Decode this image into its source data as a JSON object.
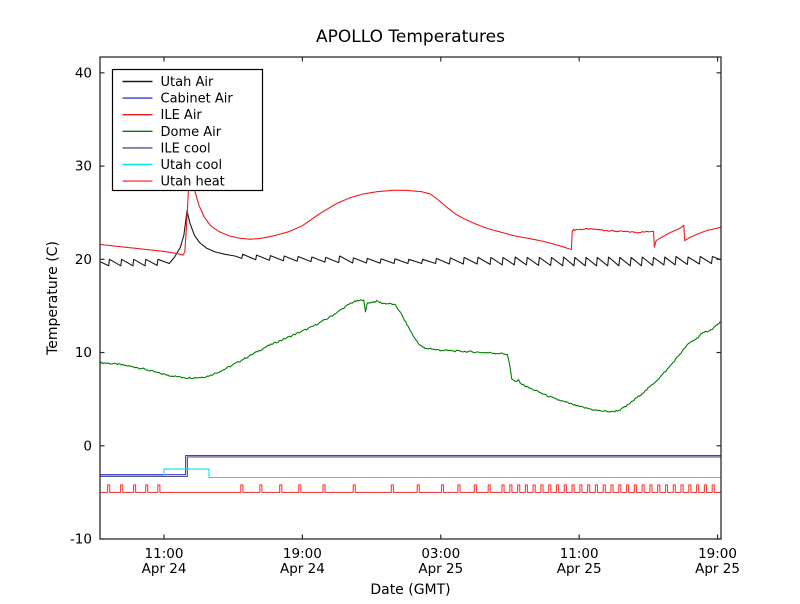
{
  "figure": {
    "background": "#ffffff",
    "border_color": "#2b2b2b"
  },
  "chart_data": {
    "type": "line",
    "title": "APOLLO Temperatures",
    "xlabel": "Date (GMT)",
    "ylabel": "Temperature (C)",
    "x_unit": "hours_since_Apr24_0000_GMT",
    "xlim": [
      7.3,
      43.2
    ],
    "ylim": [
      -10,
      41.7
    ],
    "grid": false,
    "legend_position": "upper left",
    "y_ticks": [
      {
        "value": -10,
        "label": "-10"
      },
      {
        "value": 0,
        "label": "0"
      },
      {
        "value": 10,
        "label": "10"
      },
      {
        "value": 20,
        "label": "20"
      },
      {
        "value": 30,
        "label": "30"
      },
      {
        "value": 40,
        "label": "40"
      }
    ],
    "x_ticks": [
      {
        "hour": 11,
        "time": "11:00",
        "date": "Apr 24"
      },
      {
        "hour": 19,
        "time": "19:00",
        "date": "Apr 24"
      },
      {
        "hour": 27,
        "time": "03:00",
        "date": "Apr 25"
      },
      {
        "hour": 35,
        "time": "11:00",
        "date": "Apr 25"
      },
      {
        "hour": 43,
        "time": "19:00",
        "date": "Apr 25"
      }
    ],
    "series": [
      {
        "name": "Utah Air",
        "color": "#1a1a1a",
        "noise": 0,
        "points": [
          [
            7.3,
            19.75
          ],
          [
            7.8,
            19.3
          ],
          [
            7.85,
            20.0
          ],
          [
            8.5,
            19.3
          ],
          [
            8.55,
            20.0
          ],
          [
            9.2,
            19.3
          ],
          [
            9.25,
            20.0
          ],
          [
            9.9,
            19.3
          ],
          [
            9.95,
            20.0
          ],
          [
            10.6,
            19.35
          ],
          [
            10.65,
            20.0
          ],
          [
            11.3,
            19.55
          ],
          [
            11.6,
            20.2
          ],
          [
            11.95,
            21.3
          ],
          [
            12.15,
            22.6
          ],
          [
            12.33,
            25.2
          ],
          [
            12.5,
            23.9
          ],
          [
            12.75,
            22.6
          ],
          [
            13.05,
            21.8
          ],
          [
            13.45,
            21.2
          ],
          [
            13.95,
            20.8
          ],
          [
            14.5,
            20.55
          ],
          [
            15.1,
            20.35
          ],
          [
            15.5,
            20.1
          ],
          [
            15.55,
            20.55
          ],
          [
            16.3,
            19.95
          ],
          [
            16.35,
            20.45
          ],
          [
            17.1,
            19.9
          ],
          [
            17.15,
            20.4
          ],
          [
            17.9,
            19.85
          ],
          [
            17.95,
            20.35
          ],
          [
            18.7,
            19.8
          ],
          [
            18.75,
            20.3
          ],
          [
            19.5,
            19.75
          ],
          [
            19.55,
            20.25
          ],
          [
            20.3,
            19.7
          ],
          [
            20.35,
            20.2
          ],
          [
            21.1,
            19.65
          ],
          [
            21.15,
            20.35
          ],
          [
            21.9,
            19.6
          ],
          [
            21.95,
            20.15
          ],
          [
            22.7,
            19.6
          ],
          [
            22.75,
            20.1
          ],
          [
            23.5,
            19.58
          ],
          [
            23.55,
            20.05
          ],
          [
            24.3,
            19.55
          ],
          [
            24.35,
            20.05
          ],
          [
            25.1,
            19.55
          ],
          [
            25.15,
            20.0
          ],
          [
            25.9,
            19.55
          ],
          [
            25.95,
            20.0
          ],
          [
            26.7,
            19.55
          ],
          [
            26.75,
            20.1
          ],
          [
            27.5,
            19.5
          ],
          [
            27.55,
            20.15
          ],
          [
            28.3,
            19.5
          ],
          [
            28.35,
            20.2
          ],
          [
            29.1,
            19.5
          ],
          [
            29.15,
            20.2
          ],
          [
            29.85,
            19.45
          ],
          [
            29.9,
            20.2
          ],
          [
            30.55,
            19.4
          ],
          [
            30.6,
            20.2
          ],
          [
            31.25,
            19.4
          ],
          [
            31.3,
            20.25
          ],
          [
            31.95,
            19.4
          ],
          [
            32.0,
            20.2
          ],
          [
            32.65,
            19.35
          ],
          [
            32.7,
            20.2
          ],
          [
            33.35,
            19.35
          ],
          [
            33.4,
            20.2
          ],
          [
            34.05,
            19.3
          ],
          [
            34.1,
            20.25
          ],
          [
            34.7,
            19.3
          ],
          [
            34.75,
            20.2
          ],
          [
            35.35,
            19.3
          ],
          [
            35.4,
            20.2
          ],
          [
            36.0,
            19.3
          ],
          [
            36.05,
            20.2
          ],
          [
            36.65,
            19.3
          ],
          [
            36.7,
            20.25
          ],
          [
            37.3,
            19.3
          ],
          [
            37.35,
            20.2
          ],
          [
            37.95,
            19.3
          ],
          [
            38.0,
            20.2
          ],
          [
            38.6,
            19.3
          ],
          [
            38.65,
            20.25
          ],
          [
            39.25,
            19.35
          ],
          [
            39.3,
            20.2
          ],
          [
            39.9,
            19.4
          ],
          [
            39.95,
            20.25
          ],
          [
            40.55,
            19.4
          ],
          [
            40.6,
            20.3
          ],
          [
            41.25,
            19.45
          ],
          [
            41.3,
            20.25
          ],
          [
            41.95,
            19.5
          ],
          [
            42.0,
            20.3
          ],
          [
            42.65,
            19.55
          ],
          [
            42.7,
            20.3
          ],
          [
            43.2,
            19.95
          ]
        ]
      },
      {
        "name": "Cabinet Air",
        "color": "#3d3dcc",
        "noise": 0,
        "points": [
          [
            7.3,
            -3.1
          ],
          [
            12.25,
            -3.1
          ],
          [
            12.25,
            -1.05
          ],
          [
            43.2,
            -1.05
          ]
        ]
      },
      {
        "name": "ILE Air",
        "color": "#ee1c1c",
        "noise": 0.07,
        "noise_range": [
          34.6,
          39.3
        ],
        "points": [
          [
            7.3,
            21.6
          ],
          [
            8.0,
            21.45
          ],
          [
            9.0,
            21.25
          ],
          [
            10.0,
            21.05
          ],
          [
            11.0,
            20.85
          ],
          [
            11.8,
            20.6
          ],
          [
            12.1,
            20.45
          ],
          [
            12.2,
            20.8
          ],
          [
            12.3,
            23.5
          ],
          [
            12.4,
            27.0
          ],
          [
            12.5,
            28.6
          ],
          [
            12.65,
            28.2
          ],
          [
            12.8,
            27.2
          ],
          [
            13.0,
            25.9
          ],
          [
            13.3,
            24.6
          ],
          [
            13.7,
            23.6
          ],
          [
            14.2,
            22.95
          ],
          [
            14.8,
            22.5
          ],
          [
            15.4,
            22.25
          ],
          [
            16.0,
            22.15
          ],
          [
            16.6,
            22.25
          ],
          [
            17.4,
            22.55
          ],
          [
            18.2,
            22.95
          ],
          [
            19.0,
            23.6
          ],
          [
            20.0,
            24.9
          ],
          [
            21.0,
            26.0
          ],
          [
            21.75,
            26.6
          ],
          [
            22.5,
            27.0
          ],
          [
            23.3,
            27.25
          ],
          [
            24.2,
            27.4
          ],
          [
            25.0,
            27.4
          ],
          [
            25.9,
            27.25
          ],
          [
            26.4,
            27.0
          ],
          [
            26.9,
            26.3
          ],
          [
            27.4,
            25.5
          ],
          [
            27.9,
            24.8
          ],
          [
            28.4,
            24.3
          ],
          [
            29.0,
            23.8
          ],
          [
            29.7,
            23.3
          ],
          [
            30.5,
            22.9
          ],
          [
            31.3,
            22.5
          ],
          [
            32.2,
            22.2
          ],
          [
            33.0,
            21.9
          ],
          [
            33.8,
            21.5
          ],
          [
            34.3,
            21.2
          ],
          [
            34.55,
            21.05
          ],
          [
            34.6,
            23.1
          ],
          [
            34.9,
            23.2
          ],
          [
            35.4,
            23.25
          ],
          [
            36.0,
            23.2
          ],
          [
            36.6,
            23.1
          ],
          [
            37.2,
            23.0
          ],
          [
            37.8,
            22.95
          ],
          [
            38.4,
            22.9
          ],
          [
            38.9,
            22.95
          ],
          [
            39.3,
            23.05
          ],
          [
            39.35,
            21.3
          ],
          [
            39.45,
            22.0
          ],
          [
            39.8,
            22.4
          ],
          [
            40.3,
            22.9
          ],
          [
            40.8,
            23.3
          ],
          [
            41.05,
            23.65
          ],
          [
            41.1,
            22.0
          ],
          [
            41.4,
            22.35
          ],
          [
            41.9,
            22.75
          ],
          [
            42.4,
            23.1
          ],
          [
            42.9,
            23.3
          ],
          [
            43.2,
            23.45
          ]
        ]
      },
      {
        "name": "Dome Air",
        "color": "#007f00",
        "noise": 0.09,
        "points": [
          [
            7.3,
            8.9
          ],
          [
            7.8,
            8.85
          ],
          [
            8.3,
            8.75
          ],
          [
            8.8,
            8.6
          ],
          [
            9.3,
            8.45
          ],
          [
            9.8,
            8.25
          ],
          [
            10.3,
            8.0
          ],
          [
            10.8,
            7.75
          ],
          [
            11.3,
            7.55
          ],
          [
            11.8,
            7.4
          ],
          [
            12.3,
            7.3
          ],
          [
            12.8,
            7.3
          ],
          [
            13.2,
            7.35
          ],
          [
            13.6,
            7.5
          ],
          [
            14.0,
            7.8
          ],
          [
            14.5,
            8.2
          ],
          [
            15.0,
            8.7
          ],
          [
            15.5,
            9.2
          ],
          [
            16.0,
            9.7
          ],
          [
            16.5,
            10.2
          ],
          [
            17.0,
            10.7
          ],
          [
            17.5,
            11.1
          ],
          [
            18.0,
            11.5
          ],
          [
            18.5,
            11.9
          ],
          [
            19.0,
            12.3
          ],
          [
            19.5,
            12.7
          ],
          [
            20.0,
            13.2
          ],
          [
            20.5,
            13.7
          ],
          [
            21.0,
            14.3
          ],
          [
            21.4,
            14.8
          ],
          [
            21.8,
            15.3
          ],
          [
            22.1,
            15.5
          ],
          [
            22.4,
            15.6
          ],
          [
            22.55,
            15.7
          ],
          [
            22.65,
            14.3
          ],
          [
            22.75,
            15.3
          ],
          [
            23.0,
            15.4
          ],
          [
            23.3,
            15.5
          ],
          [
            23.6,
            15.3
          ],
          [
            23.9,
            15.25
          ],
          [
            24.2,
            15.2
          ],
          [
            24.4,
            15.0
          ],
          [
            24.6,
            14.5
          ],
          [
            24.9,
            13.5
          ],
          [
            25.2,
            12.5
          ],
          [
            25.5,
            11.5
          ],
          [
            25.8,
            10.8
          ],
          [
            26.1,
            10.4
          ],
          [
            26.4,
            10.45
          ],
          [
            26.7,
            10.3
          ],
          [
            27.0,
            10.25
          ],
          [
            27.5,
            10.2
          ],
          [
            28.0,
            10.15
          ],
          [
            28.5,
            10.1
          ],
          [
            29.0,
            10.05
          ],
          [
            29.5,
            10.0
          ],
          [
            30.0,
            9.95
          ],
          [
            30.5,
            9.9
          ],
          [
            30.85,
            9.8
          ],
          [
            31.0,
            8.5
          ],
          [
            31.1,
            7.1
          ],
          [
            31.3,
            6.9
          ],
          [
            31.5,
            7.0
          ],
          [
            31.7,
            6.6
          ],
          [
            32.0,
            6.3
          ],
          [
            32.5,
            5.9
          ],
          [
            33.0,
            5.5
          ],
          [
            33.5,
            5.1
          ],
          [
            34.0,
            4.8
          ],
          [
            34.5,
            4.5
          ],
          [
            35.0,
            4.2
          ],
          [
            35.5,
            4.0
          ],
          [
            36.0,
            3.8
          ],
          [
            36.5,
            3.7
          ],
          [
            36.9,
            3.65
          ],
          [
            37.3,
            3.8
          ],
          [
            37.7,
            4.2
          ],
          [
            38.1,
            4.8
          ],
          [
            38.5,
            5.4
          ],
          [
            38.9,
            6.0
          ],
          [
            39.3,
            6.7
          ],
          [
            39.7,
            7.4
          ],
          [
            40.1,
            8.2
          ],
          [
            40.5,
            9.1
          ],
          [
            40.9,
            10.0
          ],
          [
            41.2,
            10.7
          ],
          [
            41.5,
            11.2
          ],
          [
            41.8,
            11.5
          ],
          [
            42.0,
            11.9
          ],
          [
            42.2,
            12.1
          ],
          [
            42.4,
            12.3
          ],
          [
            42.6,
            12.4
          ],
          [
            42.8,
            12.7
          ],
          [
            43.0,
            13.0
          ],
          [
            43.2,
            13.3
          ]
        ]
      },
      {
        "name": "ILE cool",
        "color": "#50508c",
        "noise": 0,
        "points": [
          [
            7.3,
            -3.3
          ],
          [
            12.35,
            -3.3
          ],
          [
            12.35,
            -1.2
          ],
          [
            43.2,
            -1.2
          ]
        ]
      },
      {
        "name": "Utah cool",
        "color": "#00e8e8",
        "noise": 0,
        "points": [
          [
            7.3,
            -3.2
          ],
          [
            11.0,
            -3.2
          ],
          [
            11.0,
            -2.5
          ],
          [
            13.6,
            -2.5
          ],
          [
            13.6,
            -3.4
          ],
          [
            43.2,
            -3.4
          ]
        ]
      },
      {
        "name": "Utah heat",
        "color": "#f4403c",
        "pulse": {
          "baseline": -5.0,
          "top": -4.2,
          "half_width": 0.06,
          "hours": [
            7.8,
            8.55,
            9.3,
            10.0,
            10.7,
            15.5,
            16.6,
            17.75,
            18.85,
            20.25,
            22.0,
            24.2,
            25.7,
            27.1,
            28.05,
            29.0,
            29.8,
            30.6,
            31.05,
            31.5,
            31.95,
            32.4,
            32.85,
            33.3,
            33.75,
            34.2,
            34.65,
            35.1,
            35.55,
            36.0,
            36.45,
            36.9,
            37.35,
            37.8,
            38.25,
            38.7,
            39.15,
            39.6,
            40.05,
            40.5,
            40.95,
            41.4,
            41.85,
            42.3,
            42.75
          ]
        }
      }
    ],
    "legend_entries": [
      "Utah Air",
      "Cabinet Air",
      "ILE Air",
      "Dome Air",
      "ILE cool",
      "Utah cool",
      "Utah heat"
    ]
  }
}
